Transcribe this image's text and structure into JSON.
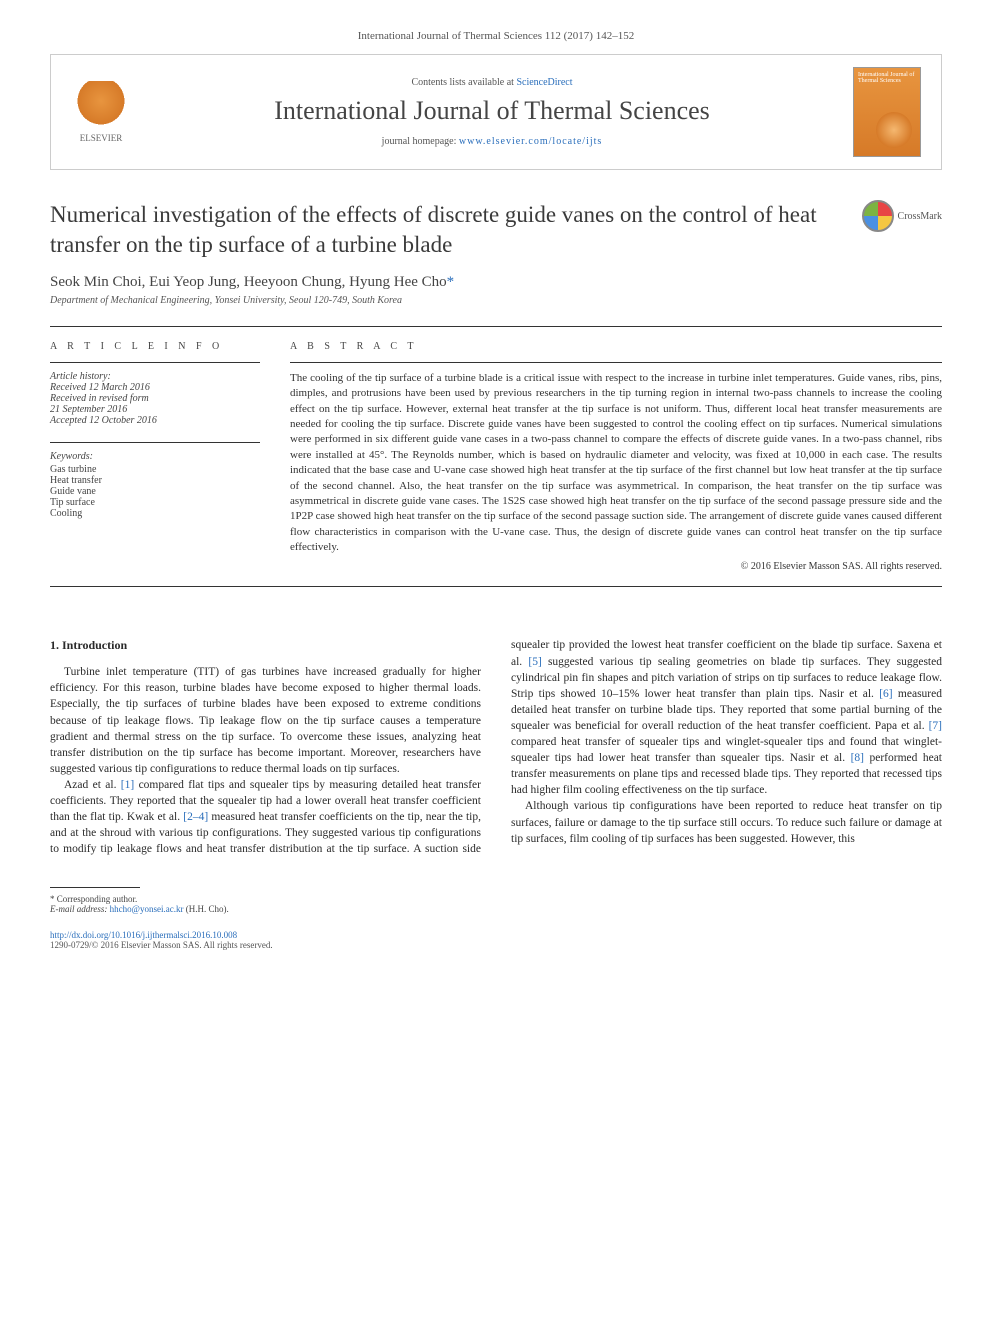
{
  "citation": "International Journal of Thermal Sciences 112 (2017) 142–152",
  "header": {
    "contents_prefix": "Contents lists available at ",
    "contents_link": "ScienceDirect",
    "journal_name": "International Journal of Thermal Sciences",
    "homepage_prefix": "journal homepage: ",
    "homepage_url": "www.elsevier.com/locate/ijts",
    "elsevier_label": "ELSEVIER",
    "cover_text": "International Journal of Thermal Sciences"
  },
  "crossmark_label": "CrossMark",
  "title": "Numerical investigation of the effects of discrete guide vanes on the control of heat transfer on the tip surface of a turbine blade",
  "authors": "Seok Min Choi, Eui Yeop Jung, Heeyoon Chung, Hyung Hee Cho",
  "author_star": "*",
  "affiliation": "Department of Mechanical Engineering, Yonsei University, Seoul 120-749, South Korea",
  "article_info_label": "A R T I C L E  I N F O",
  "abstract_label": "A B S T R A C T",
  "history": {
    "label": "Article history:",
    "received": "Received 12 March 2016",
    "revised": "Received in revised form",
    "revised_date": "21 September 2016",
    "accepted": "Accepted 12 October 2016"
  },
  "keywords": {
    "label": "Keywords:",
    "items": [
      "Gas turbine",
      "Heat transfer",
      "Guide vane",
      "Tip surface",
      "Cooling"
    ]
  },
  "abstract": "The cooling of the tip surface of a turbine blade is a critical issue with respect to the increase in turbine inlet temperatures. Guide vanes, ribs, pins, dimples, and protrusions have been used by previous researchers in the tip turning region in internal two-pass channels to increase the cooling effect on the tip surface. However, external heat transfer at the tip surface is not uniform. Thus, different local heat transfer measurements are needed for cooling the tip surface. Discrete guide vanes have been suggested to control the cooling effect on tip surfaces. Numerical simulations were performed in six different guide vane cases in a two-pass channel to compare the effects of discrete guide vanes. In a two-pass channel, ribs were installed at 45°. The Reynolds number, which is based on hydraulic diameter and velocity, was fixed at 10,000 in each case. The results indicated that the base case and U-vane case showed high heat transfer at the tip surface of the first channel but low heat transfer at the tip surface of the second channel. Also, the heat transfer on the tip surface was asymmetrical. In comparison, the heat transfer on the tip surface was asymmetrical in discrete guide vane cases. The 1S2S case showed high heat transfer on the tip surface of the second passage pressure side and the 1P2P case showed high heat transfer on the tip surface of the second passage suction side. The arrangement of discrete guide vanes caused different flow characteristics in comparison with the U-vane case. Thus, the design of discrete guide vanes can control heat transfer on the tip surface effectively.",
  "copyright": "© 2016 Elsevier Masson SAS. All rights reserved.",
  "intro_heading": "1. Introduction",
  "intro_p1": "Turbine inlet temperature (TIT) of gas turbines have increased gradually for higher efficiency. For this reason, turbine blades have become exposed to higher thermal loads. Especially, the tip surfaces of turbine blades have been exposed to extreme conditions because of tip leakage flows. Tip leakage flow on the tip surface causes a temperature gradient and thermal stress on the tip surface. To overcome these issues, analyzing heat transfer distribution on the tip surface has become important. Moreover, researchers have suggested various tip configurations to reduce thermal loads on tip surfaces.",
  "intro_p2_a": "Azad et al. ",
  "intro_p2_ref1": "[1]",
  "intro_p2_b": " compared flat tips and squealer tips by measuring detailed heat transfer coefficients. They reported that the squealer tip had a lower overall heat transfer coefficient than the flat tip. Kwak et al. ",
  "intro_p2_ref2": "[2–4]",
  "intro_p2_c": " measured heat transfer coefficients on the tip, near the tip, and at the shroud with various tip configurations. They ",
  "intro_p3_a": "suggested various tip configurations to modify tip leakage flows and heat transfer distribution at the tip surface. A suction side squealer tip provided the lowest heat transfer coefficient on the blade tip surface. Saxena et al. ",
  "intro_p3_ref5": "[5]",
  "intro_p3_b": " suggested various tip sealing geometries on blade tip surfaces. They suggested cylindrical pin fin shapes and pitch variation of strips on tip surfaces to reduce leakage flow. Strip tips showed 10–15% lower heat transfer than plain tips. Nasir et al. ",
  "intro_p3_ref6": "[6]",
  "intro_p3_c": " measured detailed heat transfer on turbine blade tips. They reported that some partial burning of the squealer was beneficial for overall reduction of the heat transfer coefficient. Papa et al. ",
  "intro_p3_ref7": "[7]",
  "intro_p3_d": " compared heat transfer of squealer tips and winglet-squealer tips and found that winglet-squealer tips had lower heat transfer than squealer tips. Nasir et al. ",
  "intro_p3_ref8": "[8]",
  "intro_p3_e": " performed heat transfer measurements on plane tips and recessed blade tips. They reported that recessed tips had higher film cooling effectiveness on the tip surface.",
  "intro_p4": "Although various tip configurations have been reported to reduce heat transfer on tip surfaces, failure or damage to the tip surface still occurs. To reduce such failure or damage at tip surfaces, film cooling of tip surfaces has been suggested. However, this",
  "footnote": {
    "corr": "* Corresponding author.",
    "email_label": "E-mail address: ",
    "email": "hhcho@yonsei.ac.kr",
    "email_suffix": " (H.H. Cho)."
  },
  "footer": {
    "doi": "http://dx.doi.org/10.1016/j.ijthermalsci.2016.10.008",
    "issn_line": "1290-0729/© 2016 Elsevier Masson SAS. All rights reserved."
  },
  "colors": {
    "link": "#2a6ebb",
    "text": "#333333",
    "border": "#cccccc",
    "orange": "#e8953f"
  }
}
